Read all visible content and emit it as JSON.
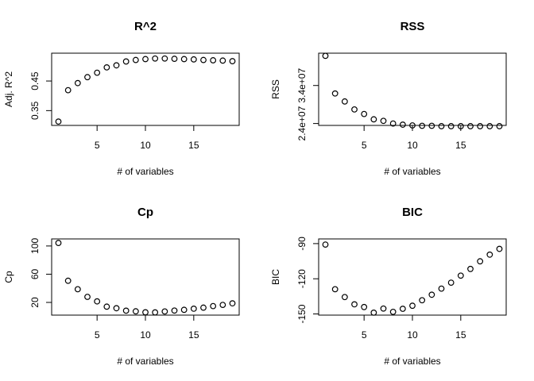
{
  "chart_data": [
    {
      "type": "scatter",
      "title": "R^2",
      "xlabel": "# of variables",
      "ylabel": "Adj. R^2",
      "xlim": [
        0.3,
        19.7
      ],
      "ylim": [
        0.3,
        0.544
      ],
      "xticks": [
        5,
        10,
        15
      ],
      "xtick_labels": [
        "5",
        "10",
        "15"
      ],
      "yticks": [
        0.35,
        0.45
      ],
      "ytick_labels": [
        "0.35",
        "0.45"
      ],
      "x": [
        1,
        2,
        3,
        4,
        5,
        6,
        7,
        8,
        9,
        10,
        11,
        12,
        13,
        14,
        15,
        16,
        17,
        18,
        19
      ],
      "y": [
        0.313,
        0.419,
        0.443,
        0.463,
        0.478,
        0.496,
        0.503,
        0.516,
        0.521,
        0.524,
        0.526,
        0.526,
        0.525,
        0.524,
        0.523,
        0.521,
        0.52,
        0.519,
        0.517
      ]
    },
    {
      "type": "scatter",
      "title": "RSS",
      "xlabel": "# of variables",
      "ylabel": "RSS",
      "xlim": [
        0.3,
        19.7
      ],
      "ylim": [
        23500000.0,
        42500000.0
      ],
      "xticks": [
        5,
        10,
        15
      ],
      "xtick_labels": [
        "5",
        "10",
        "15"
      ],
      "yticks": [
        24000000.0,
        34000000.0
      ],
      "ytick_labels": [
        "2.4e+07",
        "3.4e+07"
      ],
      "x": [
        1,
        2,
        3,
        4,
        5,
        6,
        7,
        8,
        9,
        10,
        11,
        12,
        13,
        14,
        15,
        16,
        17,
        18,
        19
      ],
      "y": [
        41800000.0,
        31900000.0,
        29800000.0,
        27700000.0,
        26500000.0,
        25100000.0,
        24700000.0,
        24000000.0,
        23700000.0,
        23500000.0,
        23400000.0,
        23400000.0,
        23300000.0,
        23300000.0,
        23300000.0,
        23300000.0,
        23300000.0,
        23300000.0,
        23300000.0
      ]
    },
    {
      "type": "scatter",
      "title": "Cp",
      "xlabel": "# of variables",
      "ylabel": "Cp",
      "xlim": [
        0.3,
        19.7
      ],
      "ylim": [
        2,
        110
      ],
      "xticks": [
        5,
        10,
        15
      ],
      "xtick_labels": [
        "5",
        "10",
        "15"
      ],
      "yticks": [
        20,
        60,
        100
      ],
      "ytick_labels": [
        "20",
        "60",
        "100"
      ],
      "x": [
        1,
        2,
        3,
        4,
        5,
        6,
        7,
        8,
        9,
        10,
        11,
        12,
        13,
        14,
        15,
        16,
        17,
        18,
        19
      ],
      "y": [
        104.3,
        50.7,
        38.7,
        27.9,
        21.5,
        14.0,
        11.8,
        8.3,
        7.4,
        6.0,
        5.9,
        7.2,
        8.5,
        9.5,
        11.1,
        12.6,
        14.8,
        16.5,
        18.7
      ]
    },
    {
      "type": "scatter",
      "title": "BIC",
      "xlabel": "# of variables",
      "ylabel": "BIC",
      "xlim": [
        0.3,
        19.7
      ],
      "ylim": [
        -151,
        -86
      ],
      "xticks": [
        5,
        10,
        15
      ],
      "xtick_labels": [
        "5",
        "10",
        "15"
      ],
      "yticks": [
        -150,
        -120,
        -90
      ],
      "ytick_labels": [
        "-150",
        "-120",
        "-90"
      ],
      "x": [
        1,
        2,
        3,
        4,
        5,
        6,
        7,
        8,
        9,
        10,
        11,
        12,
        13,
        14,
        15,
        16,
        17,
        18,
        19
      ],
      "y": [
        -90.8,
        -128.9,
        -135.6,
        -141.8,
        -144.1,
        -148.9,
        -145.4,
        -148.2,
        -145.6,
        -143.0,
        -138.3,
        -133.6,
        -128.4,
        -123.3,
        -117.3,
        -111.6,
        -105.1,
        -99.4,
        -94.5
      ]
    }
  ]
}
